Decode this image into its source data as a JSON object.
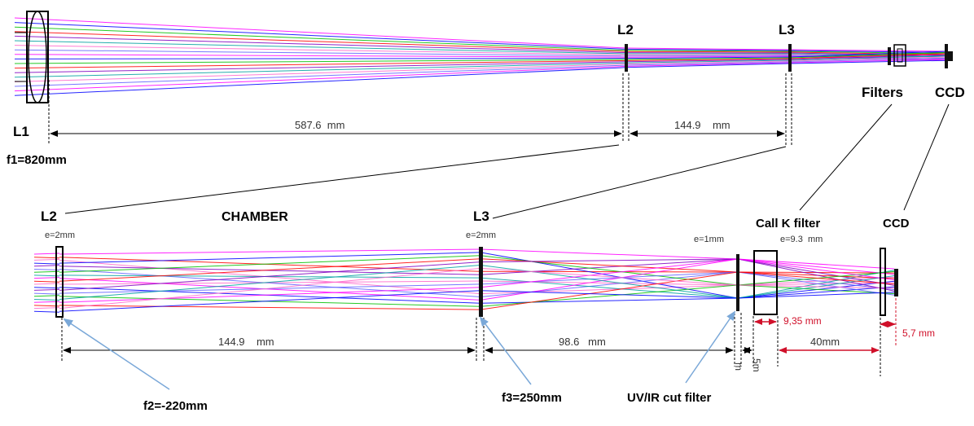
{
  "top_view": {
    "labels": {
      "l1": "L1",
      "l2": "L2",
      "l3": "L3",
      "filters": "Filters",
      "ccd": "CCD",
      "f1": "f1=820mm"
    },
    "dimensions": {
      "l1_to_l2": "587.6  mm",
      "l2_to_l3": "144.9    mm"
    }
  },
  "bottom_view": {
    "labels": {
      "l2": "L2",
      "chamber": "CHAMBER",
      "l3": "L3",
      "call_k_filter": "Call K filter",
      "ccd": "CCD",
      "f2": "f2=-220mm",
      "f3": "f3=250mm",
      "uv_ir_filter": "UV/IR cut filter"
    },
    "thickness": {
      "l2": "e=2mm",
      "l3": "e=2mm",
      "uv_ir": "e=1mm",
      "call_k": "e=9.3  mm"
    },
    "dimensions": {
      "l2_to_l3": "144.9    mm",
      "l3_to_uvir": "98.6   mm",
      "uvir_gap": "5m",
      "uvir_gap_tail": "m",
      "filter_to_ccd": "40mm"
    },
    "red_dimensions": {
      "call_k_width": "9,35 mm",
      "ccd_width": "5,7 mm"
    }
  },
  "colors": {
    "rays": [
      "#ff00ff",
      "#0000ff",
      "#00c000",
      "#ff0000",
      "#8000c0",
      "#00a0a0",
      "#ff66cc",
      "#6060ff"
    ],
    "dimension_red": "#d0102a",
    "leader_blue": "#7aa8d8"
  }
}
